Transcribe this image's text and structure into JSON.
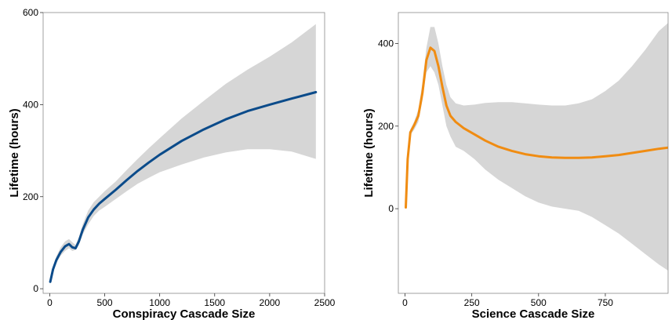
{
  "chart_data": [
    {
      "type": "line",
      "xlabel": "Conspiracy Cascade Size",
      "ylabel": "Lifetime (hours)",
      "xlim": [
        -60,
        2500
      ],
      "ylim": [
        -10,
        600
      ],
      "xticks": [
        0,
        500,
        1000,
        1500,
        2000,
        2500
      ],
      "yticks": [
        0,
        200,
        400,
        600
      ],
      "grid": false,
      "colors": {
        "line": "#0b4b8a",
        "band": "#d6d6d6"
      },
      "series": [
        {
          "x": [
            5,
            30,
            60,
            100,
            140,
            175,
            205,
            235,
            265,
            300,
            350,
            400,
            450,
            500,
            600,
            700,
            800,
            900,
            1000,
            1200,
            1400,
            1600,
            1800,
            2000,
            2200,
            2420
          ],
          "y": [
            15,
            42,
            62,
            80,
            92,
            97,
            90,
            88,
            103,
            128,
            155,
            172,
            185,
            195,
            215,
            236,
            256,
            274,
            291,
            321,
            346,
            368,
            386,
            400,
            413,
            427
          ],
          "lower": [
            12,
            36,
            55,
            72,
            82,
            88,
            82,
            84,
            95,
            118,
            140,
            158,
            170,
            178,
            195,
            212,
            228,
            241,
            253,
            270,
            285,
            296,
            303,
            303,
            298,
            282
          ],
          "upper": [
            19,
            48,
            70,
            90,
            103,
            108,
            101,
            95,
            112,
            140,
            170,
            188,
            200,
            212,
            233,
            258,
            282,
            305,
            327,
            370,
            408,
            445,
            476,
            504,
            535,
            575
          ]
        }
      ]
    },
    {
      "type": "line",
      "xlabel": "Science Cascade Size",
      "ylabel": "Lifetime (hours)",
      "xlim": [
        -25,
        985
      ],
      "ylim": [
        -205,
        475
      ],
      "xticks": [
        0,
        250,
        500,
        750
      ],
      "yticks": [
        0,
        200,
        400
      ],
      "grid": false,
      "colors": {
        "line": "#f08c12",
        "band": "#d6d6d6"
      },
      "series": [
        {
          "x": [
            3,
            10,
            20,
            35,
            50,
            65,
            80,
            95,
            110,
            125,
            140,
            155,
            170,
            190,
            220,
            260,
            300,
            350,
            400,
            450,
            500,
            550,
            600,
            650,
            700,
            750,
            800,
            850,
            900,
            950,
            985
          ],
          "y": [
            3,
            120,
            185,
            203,
            225,
            280,
            360,
            390,
            382,
            345,
            295,
            250,
            225,
            210,
            195,
            180,
            165,
            150,
            140,
            132,
            127,
            124,
            123,
            123,
            124,
            127,
            130,
            135,
            140,
            145,
            148
          ],
          "lower": [
            0,
            110,
            178,
            192,
            210,
            262,
            330,
            345,
            330,
            300,
            250,
            200,
            175,
            150,
            140,
            120,
            95,
            70,
            50,
            30,
            15,
            5,
            0,
            -5,
            -20,
            -40,
            -60,
            -85,
            -110,
            -135,
            -150
          ],
          "upper": [
            6,
            130,
            192,
            212,
            240,
            305,
            390,
            440,
            440,
            400,
            345,
            300,
            270,
            255,
            250,
            252,
            256,
            258,
            258,
            255,
            252,
            250,
            250,
            255,
            265,
            285,
            310,
            345,
            385,
            430,
            450
          ]
        }
      ]
    }
  ]
}
